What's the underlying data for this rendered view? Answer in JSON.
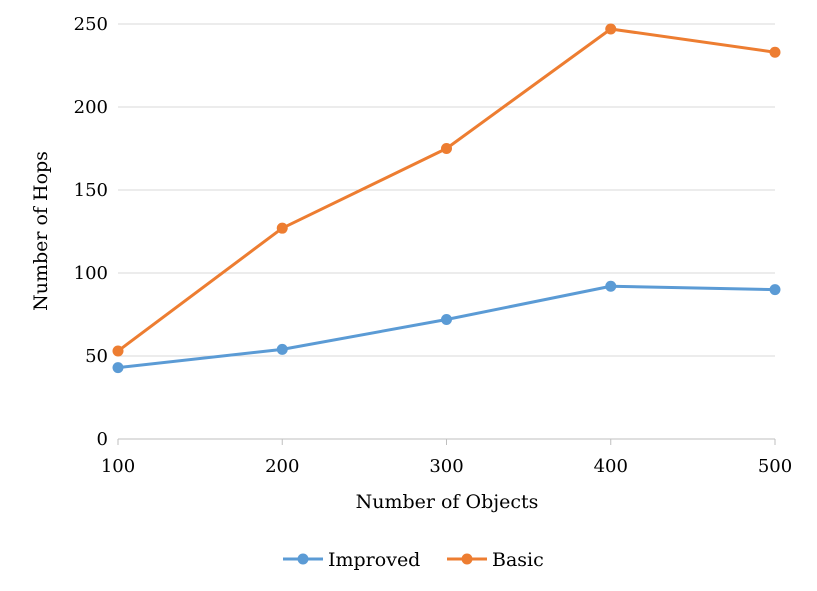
{
  "chart_data": {
    "type": "line",
    "xlabel": "Number of Objects",
    "ylabel": "Number of Hops",
    "x": [
      100,
      200,
      300,
      400,
      500
    ],
    "xlim": [
      100,
      500
    ],
    "ylim": [
      0,
      250
    ],
    "yticks": [
      0,
      50,
      100,
      150,
      200,
      250
    ],
    "xticks": [
      100,
      200,
      300,
      400,
      500
    ],
    "grid": true,
    "legend_position": "bottom",
    "series": [
      {
        "name": "Improved",
        "color": "#5B9BD5",
        "values": [
          43,
          54,
          72,
          92,
          90
        ]
      },
      {
        "name": "Basic",
        "color": "#ED7D31",
        "values": [
          53,
          127,
          175,
          247,
          233
        ]
      }
    ]
  }
}
